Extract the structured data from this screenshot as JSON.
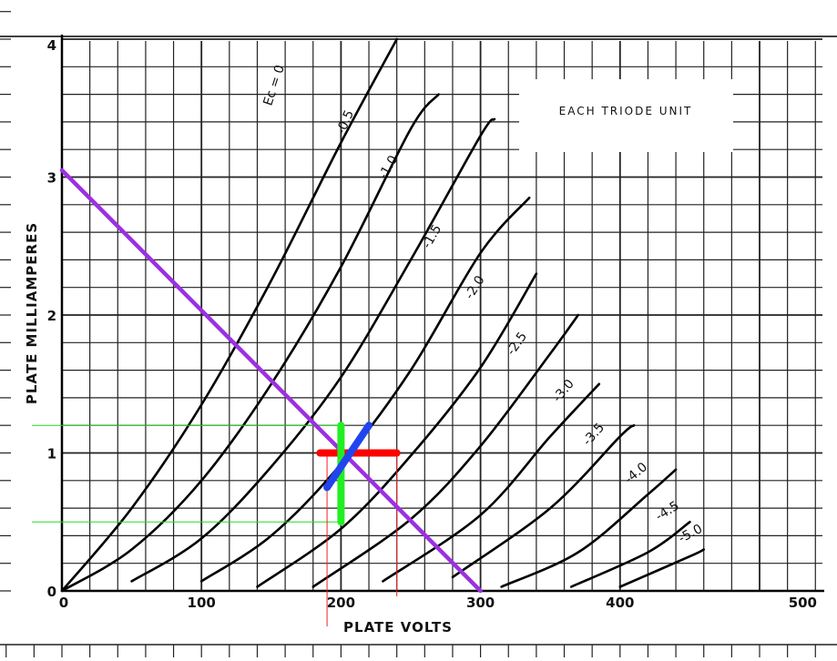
{
  "chart_data": {
    "type": "line",
    "title": "",
    "xlabel": "PLATE VOLTS",
    "ylabel": "PLATE MILLIAMPERES",
    "xlim": [
      0,
      500
    ],
    "ylim": [
      0,
      4
    ],
    "x_ticks": [
      "0",
      "100",
      "200",
      "300",
      "400",
      "500"
    ],
    "y_ticks": [
      "0",
      "1",
      "2",
      "3",
      "4"
    ],
    "grid": true,
    "box_label": "EACH TRIODE UNIT",
    "series": [
      {
        "name": "Ec = 0",
        "label": "Ec = 0",
        "points": [
          [
            0,
            0
          ],
          [
            50,
            0.6
          ],
          [
            100,
            1.35
          ],
          [
            150,
            2.25
          ],
          [
            200,
            3.25
          ],
          [
            240,
            4.0
          ]
        ]
      },
      {
        "name": "-0.5",
        "label": "-0.5",
        "points": [
          [
            0,
            0
          ],
          [
            50,
            0.3
          ],
          [
            100,
            0.8
          ],
          [
            150,
            1.5
          ],
          [
            200,
            2.35
          ],
          [
            250,
            3.35
          ],
          [
            270,
            3.6
          ]
        ]
      },
      {
        "name": "-1.0",
        "label": "-1.0",
        "points": [
          [
            50,
            0.07
          ],
          [
            100,
            0.38
          ],
          [
            150,
            0.9
          ],
          [
            200,
            1.55
          ],
          [
            250,
            2.4
          ],
          [
            300,
            3.3
          ],
          [
            310,
            3.42
          ]
        ]
      },
      {
        "name": "-1.5",
        "label": "-1.5",
        "points": [
          [
            100,
            0.07
          ],
          [
            150,
            0.4
          ],
          [
            200,
            0.92
          ],
          [
            250,
            1.6
          ],
          [
            300,
            2.45
          ],
          [
            335,
            2.85
          ]
        ]
      },
      {
        "name": "-2.0",
        "label": "-2.0",
        "points": [
          [
            140,
            0.03
          ],
          [
            200,
            0.45
          ],
          [
            250,
            0.98
          ],
          [
            300,
            1.62
          ],
          [
            340,
            2.3
          ]
        ]
      },
      {
        "name": "-2.5",
        "label": "-2.5",
        "points": [
          [
            180,
            0.03
          ],
          [
            250,
            0.52
          ],
          [
            300,
            1.05
          ],
          [
            350,
            1.72
          ],
          [
            370,
            2.0
          ]
        ]
      },
      {
        "name": "-3.0",
        "label": "-3.0",
        "points": [
          [
            230,
            0.07
          ],
          [
            300,
            0.55
          ],
          [
            350,
            1.12
          ],
          [
            385,
            1.5
          ]
        ]
      },
      {
        "name": "-3.5",
        "label": "-3.5",
        "points": [
          [
            280,
            0.1
          ],
          [
            350,
            0.6
          ],
          [
            400,
            1.12
          ],
          [
            410,
            1.2
          ]
        ]
      },
      {
        "name": "-4.0",
        "label": "-4.0",
        "points": [
          [
            315,
            0.03
          ],
          [
            370,
            0.28
          ],
          [
            420,
            0.7
          ],
          [
            440,
            0.88
          ]
        ]
      },
      {
        "name": "-4.5",
        "label": "-4.5",
        "points": [
          [
            365,
            0.03
          ],
          [
            420,
            0.28
          ],
          [
            450,
            0.5
          ]
        ]
      },
      {
        "name": "-5.0",
        "label": "-5.0",
        "points": [
          [
            400,
            0.03
          ],
          [
            450,
            0.25
          ],
          [
            460,
            0.3
          ]
        ]
      }
    ],
    "load_line": {
      "x": [
        0,
        300
      ],
      "y": [
        3.05,
        0
      ],
      "color": "#9b30e0"
    },
    "annotations": {
      "operating_point": [
        200,
        1.0
      ],
      "red_bar": {
        "x": [
          185,
          240
        ],
        "y": 1.0,
        "color": "#ff0000"
      },
      "green_bar": {
        "x": 200,
        "y": [
          0.5,
          1.2
        ],
        "color": "#22ee22"
      },
      "blue_bar": {
        "x": [
          190,
          220
        ],
        "y": [
          0.75,
          1.2
        ],
        "color": "#2244ee"
      },
      "green_guides": [
        1.2,
        0.5
      ],
      "red_guides": [
        190,
        240
      ]
    }
  }
}
